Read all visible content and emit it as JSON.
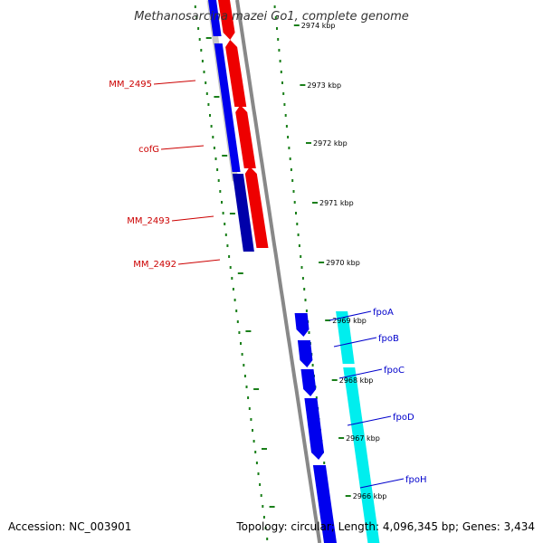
{
  "header": {
    "title": "Methanosarcina mazei Go1, complete genome"
  },
  "footer": {
    "accession": "Accession: NC_003901",
    "summary": "Topology: circular; Length: 4,096,345 bp; Genes: 3,434"
  },
  "colors": {
    "forward_dark": "#0000aa",
    "forward": "#0000ee",
    "reverse": "#ee0000",
    "reverse_highlight": "#00eeee",
    "backbone": "#888888",
    "ticks": "#1a7f1a",
    "label_red": "#cc0000",
    "label_blue": "#0000cc"
  },
  "ticks": [
    {
      "label": "2974 kbp"
    },
    {
      "label": "2973 kbp"
    },
    {
      "label": "2972 kbp"
    },
    {
      "label": "2971 kbp"
    },
    {
      "label": "2970 kbp"
    },
    {
      "label": "2969 kbp"
    },
    {
      "label": "2968 kbp"
    },
    {
      "label": "2967 kbp"
    },
    {
      "label": "2966 kbp"
    }
  ],
  "genes_left": [
    {
      "name": "MM_2495"
    },
    {
      "name": "cofG"
    },
    {
      "name": "MM_2493"
    },
    {
      "name": "MM_2492"
    }
  ],
  "genes_right": [
    {
      "name": "fpoA"
    },
    {
      "name": "fpoB"
    },
    {
      "name": "fpoC"
    },
    {
      "name": "fpoD"
    },
    {
      "name": "fpoH"
    }
  ]
}
